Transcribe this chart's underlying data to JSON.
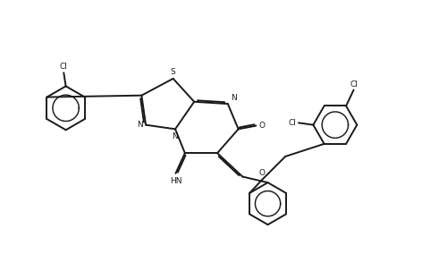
{
  "bg_color": "#ffffff",
  "line_color": "#1a1a1a",
  "figsize": [
    4.72,
    2.84
  ],
  "dpi": 100,
  "xlim": [
    0,
    10
  ],
  "ylim": [
    0,
    6
  ]
}
